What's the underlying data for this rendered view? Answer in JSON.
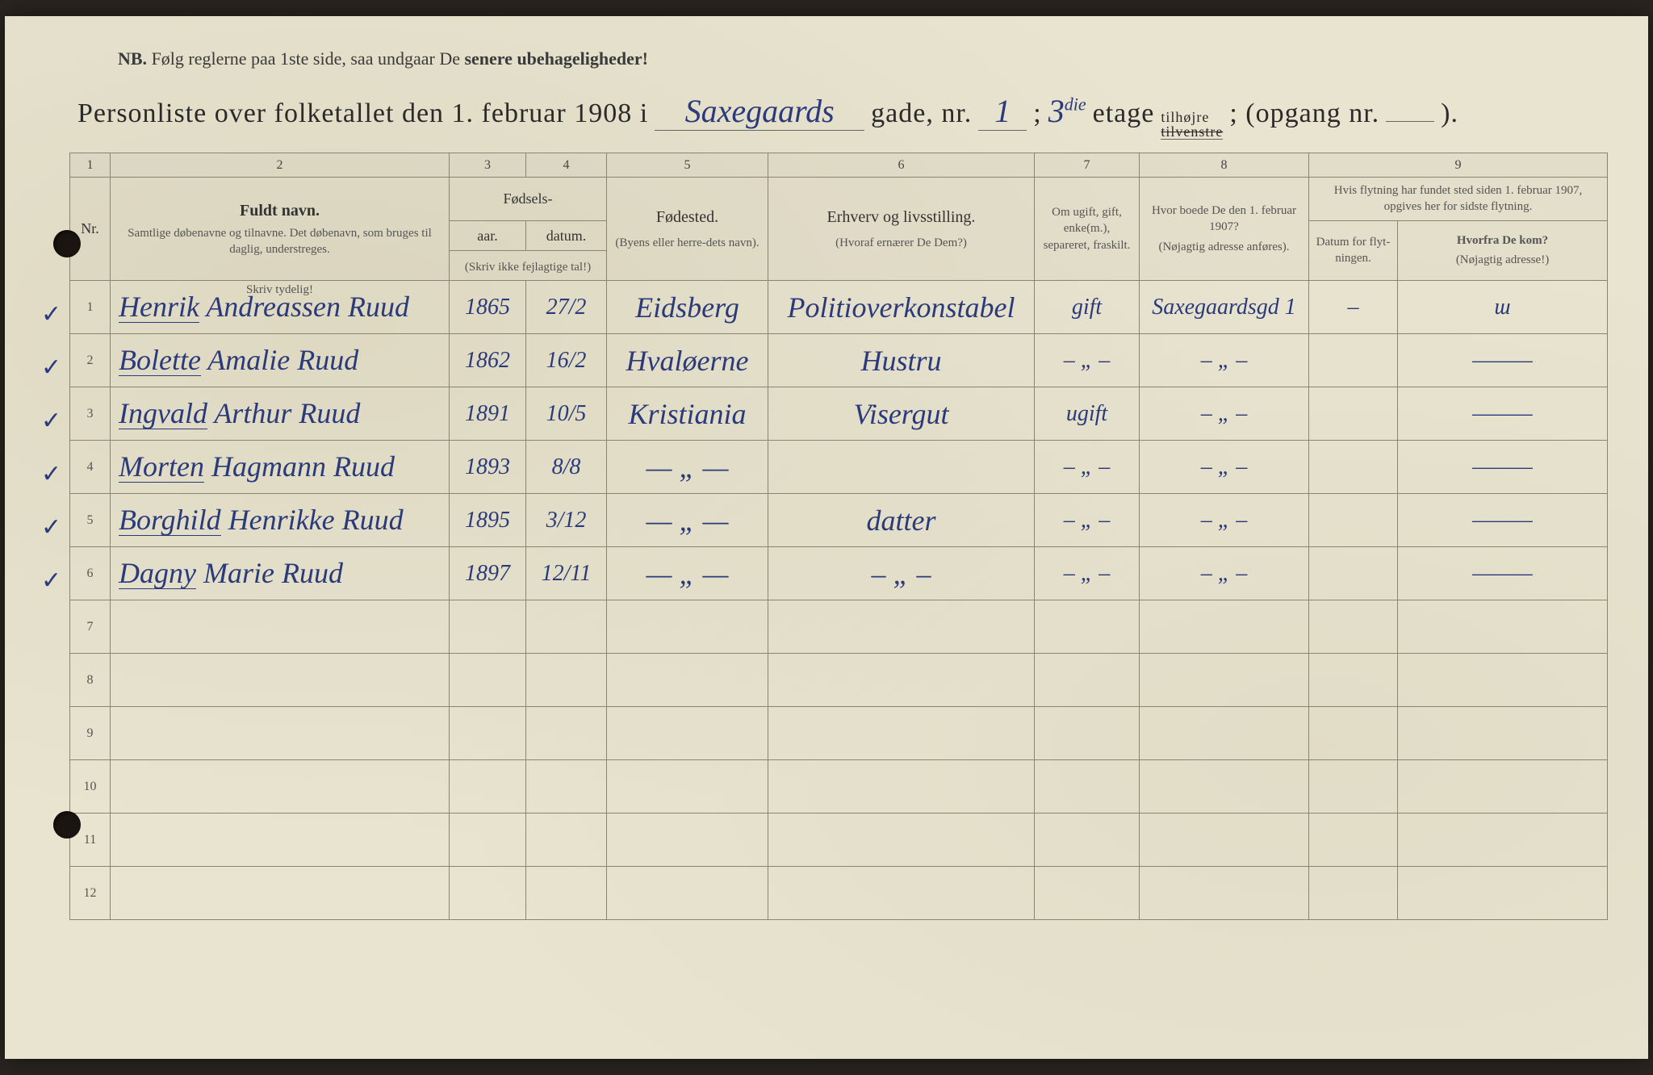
{
  "colors": {
    "paper": "#e8e4d0",
    "ink_print": "#2a2a2a",
    "ink_hand": "#2a3a7a",
    "rule": "#8a8570"
  },
  "nb": {
    "prefix": "NB.",
    "text": "Følg reglerne paa 1ste side, saa undgaar De",
    "bold_suffix": "senere ubehageligheder!"
  },
  "title": {
    "prefix": "Personliste over folketallet den 1. februar 1908 i",
    "street_hand": "Saxegaards",
    "gade": "gade, nr.",
    "nr_hand": "1",
    "semicolon": ";",
    "floor_num": "3",
    "floor_sup": "die",
    "etage": "etage",
    "side_top": "tilhøjre",
    "side_bot": "tilvenstre",
    "opgang": "; (opgang nr.",
    "opgang_val": "",
    "close": ")."
  },
  "colnums": [
    "1",
    "2",
    "3",
    "4",
    "5",
    "6",
    "7",
    "8",
    "9"
  ],
  "headers": {
    "nr": "Nr.",
    "name_main": "Fuldt navn.",
    "name_sub": "Samtlige døbenavne og tilnavne. Det døbenavn, som bruges til daglig, understreges.",
    "birth_group": "Fødsels-",
    "year": "aar.",
    "date": "datum.",
    "birth_sub": "(Skriv ikke fejlagtige tal!)",
    "birthplace_main": "Fødested.",
    "birthplace_sub": "(Byens eller herre-dets navn).",
    "occupation_main": "Erhverv og livsstilling.",
    "occupation_sub": "(Hvoraf ernærer De Dem?)",
    "marital": "Om ugift, gift, enke(m.), separeret, fraskilt.",
    "prev_main": "Hvor boede De den 1. februar 1907?",
    "prev_sub": "(Nøjagtig adresse anføres).",
    "move_group": "Hvis flytning har fundet sted siden 1. februar 1907, opgives her for sidste flytning.",
    "move_date": "Datum for flyt-ningen.",
    "move_from_main": "Hvorfra De kom?",
    "move_from_sub": "(Nøjagtig adresse!)",
    "skriv_tydelig": "Skriv tydelig!"
  },
  "rows": [
    {
      "nr": "1",
      "check": "✓",
      "name_underline": "Henrik",
      "name_rest": "Andreassen Ruud",
      "year": "1865",
      "date": "27/2",
      "birthplace": "Eidsberg",
      "occupation": "Politioverkonstabel",
      "marital": "gift",
      "prev_addr": "Saxegaardsgd 1",
      "move_date": "–",
      "move_from": "ɯ"
    },
    {
      "nr": "2",
      "check": "✓",
      "name_underline": "Bolette",
      "name_rest": "Amalie Ruud",
      "year": "1862",
      "date": "16/2",
      "birthplace": "Hvaløerne",
      "occupation": "Hustru",
      "marital": "– „ –",
      "prev_addr": "– „ –",
      "move_date": "",
      "move_from": "———"
    },
    {
      "nr": "3",
      "check": "✓",
      "name_underline": "Ingvald",
      "name_rest": "Arthur Ruud",
      "year": "1891",
      "date": "10/5",
      "birthplace": "Kristiania",
      "occupation": "Visergut",
      "marital": "ugift",
      "prev_addr": "– „ –",
      "move_date": "",
      "move_from": "———"
    },
    {
      "nr": "4",
      "check": "✓",
      "name_underline": "Morten",
      "name_rest": "Hagmann Ruud",
      "year": "1893",
      "date": "8/8",
      "birthplace": "— „ —",
      "occupation": "",
      "marital": "– „ –",
      "prev_addr": "– „ –",
      "move_date": "",
      "move_from": "———"
    },
    {
      "nr": "5",
      "check": "✓",
      "name_underline": "Borghild",
      "name_rest": "Henrikke Ruud",
      "year": "1895",
      "date": "3/12",
      "birthplace": "— „ —",
      "occupation": "datter",
      "marital": "– „ –",
      "prev_addr": "– „ –",
      "move_date": "",
      "move_from": "———"
    },
    {
      "nr": "6",
      "check": "✓",
      "name_underline": "Dagny",
      "name_rest": "Marie Ruud",
      "year": "1897",
      "date": "12/11",
      "birthplace": "— „ —",
      "occupation": "– „ –",
      "marital": "– „ –",
      "prev_addr": "– „ –",
      "move_date": "",
      "move_from": "———"
    },
    {
      "nr": "7"
    },
    {
      "nr": "8"
    },
    {
      "nr": "9"
    },
    {
      "nr": "10"
    },
    {
      "nr": "11"
    },
    {
      "nr": "12"
    }
  ]
}
